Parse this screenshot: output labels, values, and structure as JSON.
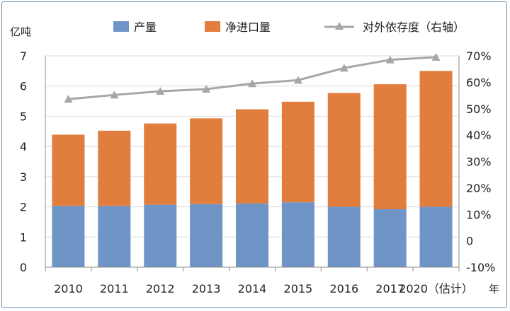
{
  "chart_data": {
    "type": "bar",
    "stacked": true,
    "left_axis_label": "亿吨",
    "x_unit_label": "年",
    "categories": [
      "2010",
      "2011",
      "2012",
      "2013",
      "2014",
      "2015",
      "2016",
      "2017",
      "2020（估计）"
    ],
    "series": [
      {
        "name": "产量",
        "type": "bar",
        "axis": "left",
        "color": "#6f95c7",
        "values": [
          2.03,
          2.03,
          2.07,
          2.09,
          2.11,
          2.15,
          2.0,
          1.92,
          2.0
        ]
      },
      {
        "name": "净进口量",
        "type": "bar",
        "axis": "left",
        "color": "#e27e3d",
        "values": [
          2.36,
          2.49,
          2.69,
          2.84,
          3.12,
          3.33,
          3.77,
          4.14,
          4.5
        ]
      },
      {
        "name": "对外依存度（右轴）",
        "type": "line",
        "axis": "right",
        "color": "#a6a6a6",
        "marker": "triangle",
        "values": [
          53.6,
          55.2,
          56.6,
          57.4,
          59.5,
          60.8,
          65.4,
          68.5,
          69.5
        ]
      }
    ],
    "y_left": {
      "min": 0,
      "max": 7,
      "ticks": [
        "0",
        "1",
        "2",
        "3",
        "4",
        "5",
        "6",
        "7"
      ]
    },
    "y_right": {
      "min": -10,
      "max": 70,
      "unit": "%",
      "ticks": [
        "-10%",
        "0",
        "10%",
        "20%",
        "30%",
        "40%",
        "50%",
        "60%",
        "70%"
      ]
    },
    "grid": true,
    "legend_position": "top"
  }
}
